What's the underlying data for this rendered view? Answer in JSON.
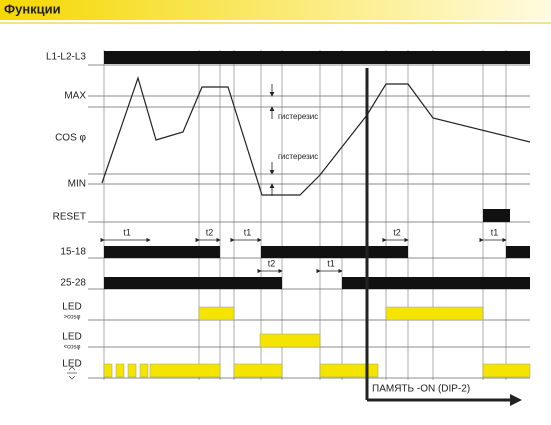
{
  "header": {
    "title": "Функции"
  },
  "rows": [
    "L1-L2-L3",
    "MAX",
    "COS φ",
    "MIN",
    "RESET",
    "15-18",
    "25-28"
  ],
  "leds": [
    {
      "label": "LED",
      "sub": ">cosφ"
    },
    {
      "label": "LED",
      "sub": "<cosφ"
    },
    {
      "label": "LED"
    }
  ],
  "timings": [
    "t1",
    "t2",
    "t1",
    "t2",
    "t1",
    "t2",
    "t1"
  ],
  "hysteresis": [
    "гистерезис",
    "гистерезис"
  ],
  "memory": "ПАМЯТЬ -ON (DIP-2)"
}
